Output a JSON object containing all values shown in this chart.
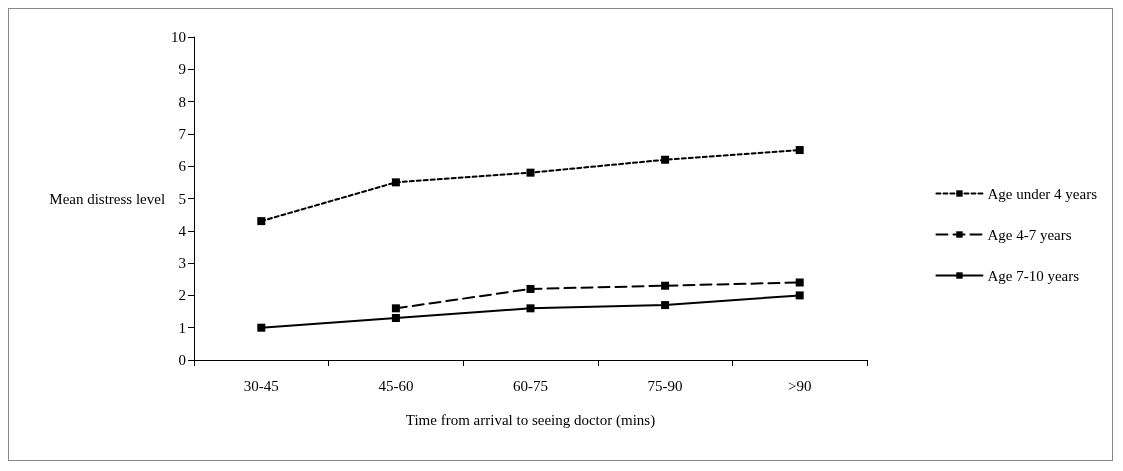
{
  "chart_data": {
    "type": "line",
    "xlabel": "Time from arrival to seeing doctor (mins)",
    "ylabel": "Mean distress level",
    "categories": [
      "30-45",
      "45-60",
      "60-75",
      "75-90",
      ">90"
    ],
    "series": [
      {
        "name": "Age under 4 years",
        "color": "#000000",
        "line_style": "dotted",
        "values": [
          4.3,
          5.5,
          5.8,
          6.2,
          6.5
        ]
      },
      {
        "name": "Age 4-7 years",
        "color": "#000000",
        "line_style": "dashed",
        "values": [
          null,
          1.6,
          2.2,
          2.3,
          2.4
        ]
      },
      {
        "name": "Age 7-10 years",
        "color": "#000000",
        "line_style": "solid",
        "values": [
          1.0,
          1.3,
          1.6,
          1.7,
          2.0
        ]
      }
    ],
    "ylim": [
      0,
      10
    ],
    "yticks": [
      0,
      1,
      2,
      3,
      4,
      5,
      6,
      7,
      8,
      9,
      10
    ],
    "grid": false,
    "legend": "right",
    "marker": "square"
  }
}
